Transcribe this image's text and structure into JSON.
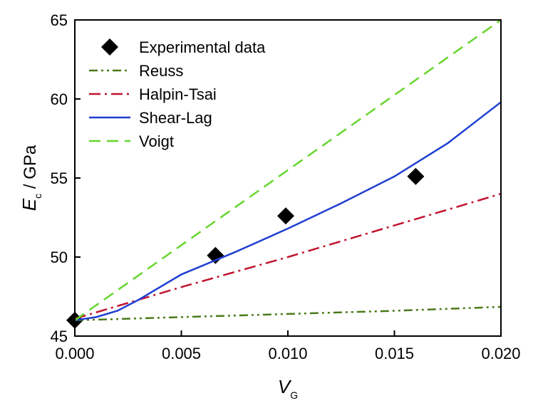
{
  "chart_data": {
    "type": "line",
    "xlabel": {
      "main": "V",
      "sub": "G"
    },
    "ylabel": {
      "main": "E",
      "sub": "c",
      "unit": " / GPa"
    },
    "xlim": [
      0.0,
      0.02
    ],
    "ylim": [
      45,
      65
    ],
    "x_ticks": [
      "0.000",
      "0.005",
      "0.010",
      "0.015",
      "0.020"
    ],
    "y_ticks": [
      "45",
      "50",
      "55",
      "60",
      "65"
    ],
    "x_tick_values": [
      0.0,
      0.005,
      0.01,
      0.015,
      0.02
    ],
    "y_tick_values": [
      45,
      50,
      55,
      60,
      65
    ],
    "grid": false,
    "legend_position": "top-left",
    "series": [
      {
        "name": "Experimental data",
        "kind": "scatter",
        "color": "#000000",
        "marker": "diamond",
        "x": [
          0.0,
          0.0066,
          0.0099,
          0.016
        ],
        "y": [
          46.0,
          50.1,
          52.6,
          55.1
        ]
      },
      {
        "name": "Reuss",
        "kind": "line",
        "color": "#4b7a1a",
        "dash": "dash-dot-dot",
        "x": [
          0.0,
          0.005,
          0.01,
          0.015,
          0.02
        ],
        "y": [
          46.0,
          46.2,
          46.4,
          46.6,
          46.85
        ]
      },
      {
        "name": "Halpin-Tsai",
        "kind": "line",
        "color": "#c0142e",
        "dash": "dash-dot",
        "x": [
          0.0,
          0.005,
          0.01,
          0.015,
          0.02
        ],
        "y": [
          46.1,
          48.1,
          50.0,
          52.0,
          54.0
        ]
      },
      {
        "name": "Shear-Lag",
        "kind": "line",
        "color": "#1f3fd1",
        "dash": "solid",
        "x": [
          0.0,
          0.001,
          0.002,
          0.003,
          0.005,
          0.0075,
          0.01,
          0.0125,
          0.015,
          0.0175,
          0.02
        ],
        "y": [
          46.0,
          46.2,
          46.6,
          47.3,
          48.9,
          50.3,
          51.8,
          53.4,
          55.1,
          57.2,
          59.8
        ]
      },
      {
        "name": "Voigt",
        "kind": "line",
        "color": "#66d62e",
        "dash": "dash",
        "x": [
          0.0,
          0.02
        ],
        "y": [
          46.0,
          65.0
        ]
      }
    ]
  }
}
